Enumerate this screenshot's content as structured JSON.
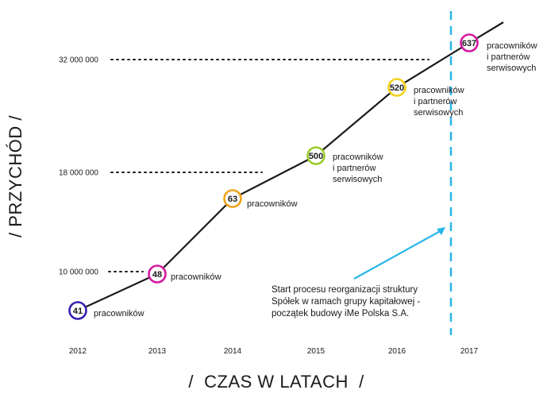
{
  "chart_data": {
    "type": "line",
    "xlabel": "/  CZAS W LATACH  /",
    "ylabel": "/  PRZYCHÓD  /",
    "x": [
      "2012",
      "2013",
      "2014",
      "2015",
      "2016",
      "2017"
    ],
    "y_reference_ticks": [
      {
        "label": "32 000 000"
      },
      {
        "label": "18 000 000"
      },
      {
        "label": "10 000 000"
      }
    ],
    "points": [
      {
        "x": "2012",
        "value": "41",
        "label": [
          "pracowników"
        ],
        "color": "#3b1fb0"
      },
      {
        "x": "2013",
        "value": "48",
        "label": [
          "pracowników"
        ],
        "color": "#d4189f"
      },
      {
        "x": "2014",
        "value": "63",
        "label": [
          "pracowników"
        ],
        "color": "#f0a51c"
      },
      {
        "x": "2015",
        "value": "500",
        "label": [
          "pracowników",
          "i partnerów",
          "serwisowych"
        ],
        "color": "#9ccb2c"
      },
      {
        "x": "2016",
        "value": "520",
        "label": [
          "pracowników",
          "i partnerów",
          "serwisowych"
        ],
        "color": "#f3d21c"
      },
      {
        "x": "2017",
        "value": "637",
        "label": [
          "pracowników",
          "i partnerów",
          "serwisowych"
        ],
        "color": "#d4189f"
      }
    ],
    "annotation": {
      "lines": [
        "Start procesu reorganizacji struktury",
        "Spółek w ramach grupy kapitałowej -",
        "początek budowy iMe Polska S.A."
      ],
      "color": "#29b6e8"
    },
    "line_color": "#1a1a1a",
    "grid": false,
    "legend": "none"
  }
}
